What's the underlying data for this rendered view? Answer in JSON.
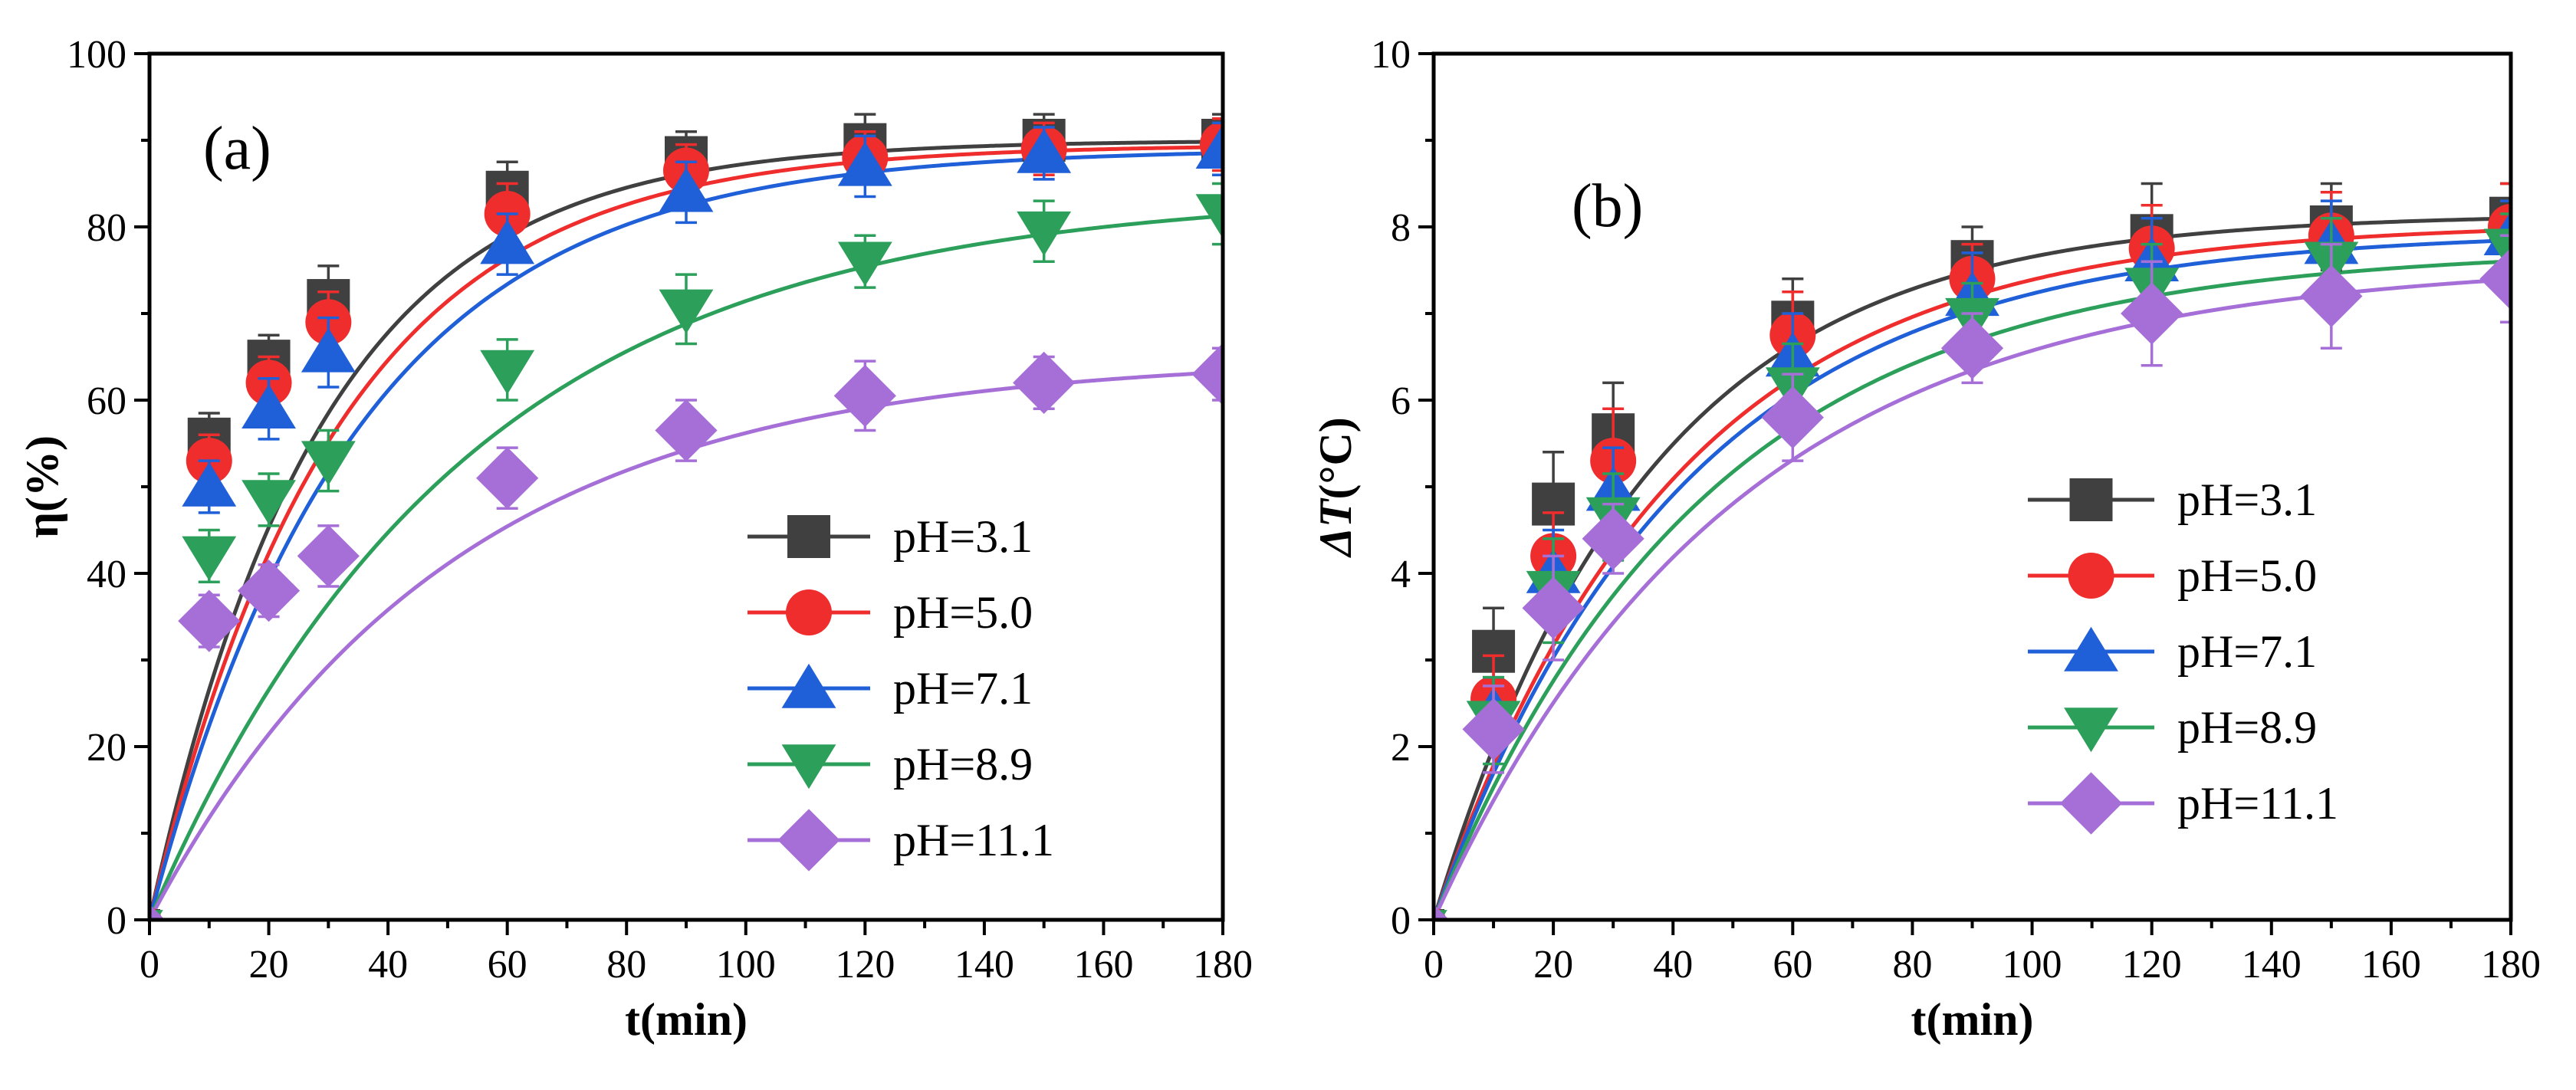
{
  "chart_data": [
    {
      "type": "scatter",
      "panel_label": "(a)",
      "xlabel": "t(min)",
      "ylabel": "η(%)",
      "xlim": [
        0,
        180
      ],
      "ylim": [
        0,
        100
      ],
      "xticks": [
        0,
        20,
        40,
        60,
        80,
        100,
        120,
        140,
        160,
        180
      ],
      "yticks": [
        0,
        20,
        40,
        60,
        80,
        100
      ],
      "x": [
        0,
        10,
        20,
        30,
        60,
        90,
        120,
        150,
        180
      ],
      "legend_position": "bottom-right",
      "series": [
        {
          "name": "pH=3.1",
          "color": "#404040",
          "marker": "square",
          "values": [
            0,
            55.5,
            64.5,
            71.5,
            84,
            88,
            89.5,
            90,
            90
          ],
          "errors": [
            0,
            3,
            3,
            4,
            3.5,
            3,
            3.5,
            3,
            3
          ],
          "fit": {
            "a": 90,
            "k": 0.035
          }
        },
        {
          "name": "pH=5.0",
          "color": "#ef2d2d",
          "marker": "circle",
          "values": [
            0,
            53,
            62,
            69,
            81.5,
            86.5,
            88,
            89,
            89.5
          ],
          "errors": [
            0,
            3,
            3,
            3.5,
            3.5,
            3,
            3,
            3,
            3
          ],
          "fit": {
            "a": 89.5,
            "k": 0.032
          }
        },
        {
          "name": "pH=7.1",
          "color": "#1f5fd8",
          "marker": "triangle-up",
          "values": [
            0,
            50,
            59,
            65.5,
            78,
            84,
            87,
            88.5,
            89
          ],
          "errors": [
            0,
            3,
            3.5,
            4,
            3.5,
            3.5,
            3.5,
            3,
            3
          ],
          "fit": {
            "a": 89,
            "k": 0.029
          }
        },
        {
          "name": "pH=8.9",
          "color": "#2ca05a",
          "marker": "triangle-down",
          "values": [
            0,
            42,
            48.5,
            53,
            63.5,
            70.5,
            76,
            79.5,
            81.5
          ],
          "errors": [
            0,
            3,
            3,
            3.5,
            3.5,
            4,
            3,
            3.5,
            3.5
          ],
          "fit": {
            "a": 84,
            "k": 0.019
          }
        },
        {
          "name": "pH=11.1",
          "color": "#a66fd8",
          "marker": "diamond",
          "values": [
            0,
            34.5,
            38,
            42,
            51,
            56.5,
            60.5,
            62,
            63
          ],
          "errors": [
            0,
            3,
            3,
            3.5,
            3.5,
            3.5,
            4,
            3,
            3
          ],
          "fit": {
            "a": 65,
            "k": 0.02
          }
        }
      ]
    },
    {
      "type": "scatter",
      "panel_label": "(b)",
      "xlabel": "t(min)",
      "ylabel": "ΔT(°C)",
      "xlim": [
        0,
        180
      ],
      "ylim": [
        0,
        10
      ],
      "xticks": [
        0,
        20,
        40,
        60,
        80,
        100,
        120,
        140,
        160,
        180
      ],
      "yticks": [
        0,
        2,
        4,
        6,
        8,
        10
      ],
      "x": [
        0,
        10,
        20,
        30,
        60,
        90,
        120,
        150,
        180
      ],
      "legend_position": "right",
      "series": [
        {
          "name": "pH=3.1",
          "color": "#404040",
          "marker": "square",
          "values": [
            0,
            3.1,
            4.8,
            5.6,
            6.9,
            7.6,
            7.9,
            8.0,
            8.1
          ],
          "errors": [
            0,
            0.5,
            0.6,
            0.6,
            0.5,
            0.4,
            0.6,
            0.5,
            0.4
          ],
          "fit": {
            "a": 8.15,
            "k": 0.028
          }
        },
        {
          "name": "pH=5.0",
          "color": "#ef2d2d",
          "marker": "circle",
          "values": [
            0,
            2.55,
            4.2,
            5.3,
            6.75,
            7.4,
            7.75,
            7.9,
            8.0
          ],
          "errors": [
            0,
            0.5,
            0.5,
            0.6,
            0.5,
            0.4,
            0.5,
            0.5,
            0.5
          ],
          "fit": {
            "a": 8.05,
            "k": 0.025
          }
        },
        {
          "name": "pH=7.1",
          "color": "#1f5fd8",
          "marker": "triangle-up",
          "values": [
            0,
            2.4,
            4.0,
            4.95,
            6.5,
            7.2,
            7.6,
            7.8,
            7.9
          ],
          "errors": [
            0,
            0.4,
            0.5,
            0.5,
            0.5,
            0.5,
            0.5,
            0.5,
            0.4
          ],
          "fit": {
            "a": 7.95,
            "k": 0.024
          }
        },
        {
          "name": "pH=8.9",
          "color": "#2ca05a",
          "marker": "triangle-down",
          "values": [
            0,
            2.3,
            3.8,
            4.65,
            6.15,
            6.95,
            7.3,
            7.6,
            7.75
          ],
          "errors": [
            0,
            0.5,
            0.6,
            0.5,
            0.5,
            0.4,
            0.5,
            0.5,
            0.4
          ],
          "fit": {
            "a": 7.75,
            "k": 0.022
          }
        },
        {
          "name": "pH=11.1",
          "color": "#a66fd8",
          "marker": "diamond",
          "values": [
            0,
            2.2,
            3.6,
            4.4,
            5.8,
            6.6,
            7.0,
            7.2,
            7.4
          ],
          "errors": [
            0,
            0.5,
            0.6,
            0.4,
            0.5,
            0.4,
            0.6,
            0.6,
            0.5
          ],
          "fit": {
            "a": 7.6,
            "k": 0.02
          }
        }
      ]
    }
  ]
}
